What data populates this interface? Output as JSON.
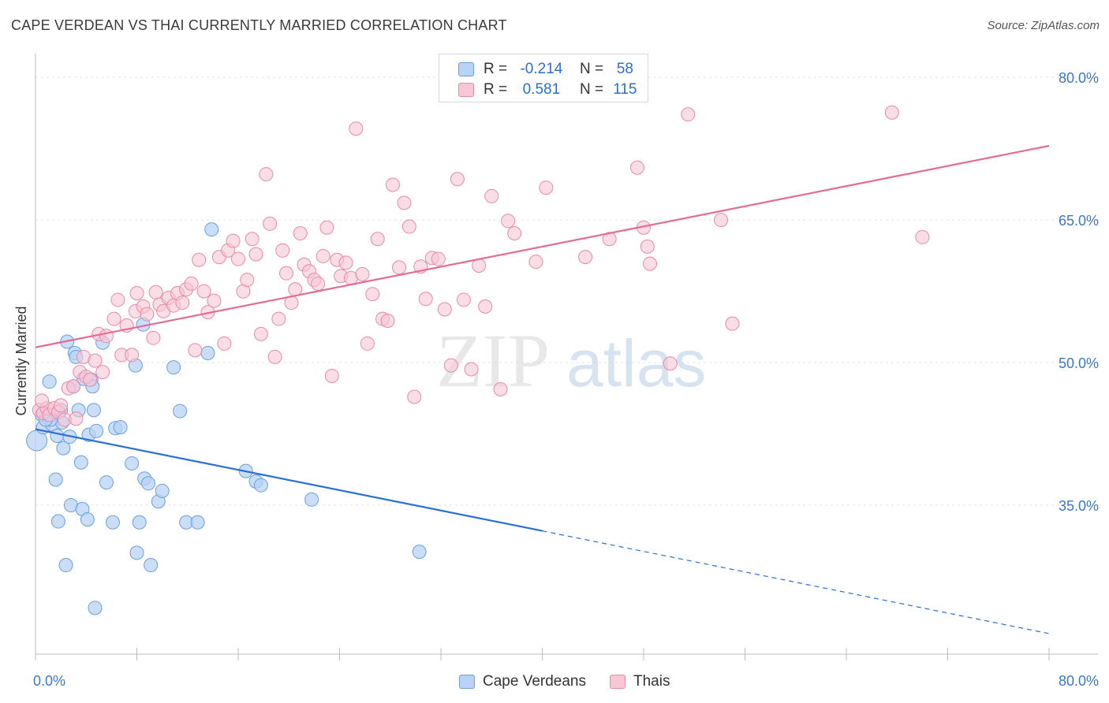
{
  "title": "CAPE VERDEAN VS THAI CURRENTLY MARRIED CORRELATION CHART",
  "source": "Source: ZipAtlas.com",
  "colors": {
    "blue_fill": "#b8d3f5",
    "blue_stroke": "#6a9fe0",
    "blue_line": "#2b6fd4",
    "pink_fill": "#f8c6d5",
    "pink_stroke": "#e88aa8",
    "pink_line": "#e36b95",
    "tick_label": "#3d78c8",
    "grid": "#e2e2e2"
  },
  "legend": {
    "rows": [
      {
        "r_label": "R =",
        "r_value": "-0.214",
        "n_label": "N =",
        "n_value": "58"
      },
      {
        "r_label": "R =",
        "r_value": "0.581",
        "n_label": "N =",
        "n_value": "115"
      }
    ],
    "series_labels": [
      "Cape Verdeans",
      "Thais"
    ]
  },
  "chart_data": {
    "type": "scatter",
    "title": "CAPE VERDEAN VS THAI CURRENTLY MARRIED CORRELATION CHART",
    "xlabel": "",
    "ylabel": "Currently Married",
    "xlim": [
      0,
      80
    ],
    "ylim": [
      20,
      82
    ],
    "x_tick_labels": [
      "0.0%",
      "80.0%"
    ],
    "y_ticks": [
      35,
      50,
      65,
      80
    ],
    "y_tick_labels": [
      "35.0%",
      "50.0%",
      "65.0%",
      "80.0%"
    ],
    "grid": true,
    "watermark": {
      "zip": "ZIP",
      "atlas": "atlas"
    },
    "series": [
      {
        "name": "Cape Verdeans",
        "r": -0.214,
        "n": 58,
        "trend": {
          "x0": 0,
          "y0": 43.0,
          "x1": 40,
          "y1": 32.3,
          "dash_x1": 80,
          "dash_y1": 21.5
        },
        "points": [
          [
            0.1,
            41.8
          ],
          [
            0.5,
            44.5
          ],
          [
            0.6,
            43.2
          ],
          [
            1.0,
            44.6
          ],
          [
            1.1,
            48.0
          ],
          [
            1.3,
            43.5
          ],
          [
            1.6,
            37.7
          ],
          [
            1.7,
            42.3
          ],
          [
            1.8,
            33.3
          ],
          [
            2.1,
            43.7
          ],
          [
            2.2,
            41.0
          ],
          [
            2.4,
            28.7
          ],
          [
            2.5,
            52.2
          ],
          [
            2.7,
            42.2
          ],
          [
            2.8,
            35.0
          ],
          [
            3.0,
            47.5
          ],
          [
            3.1,
            51.0
          ],
          [
            3.2,
            50.6
          ],
          [
            3.6,
            39.5
          ],
          [
            3.7,
            34.6
          ],
          [
            3.8,
            48.3
          ],
          [
            4.1,
            33.5
          ],
          [
            4.2,
            42.4
          ],
          [
            4.4,
            48.2
          ],
          [
            4.5,
            47.5
          ],
          [
            4.6,
            45.0
          ],
          [
            4.7,
            24.2
          ],
          [
            4.8,
            42.8
          ],
          [
            5.3,
            52.1
          ],
          [
            5.6,
            37.4
          ],
          [
            6.1,
            33.2
          ],
          [
            6.3,
            43.1
          ],
          [
            6.7,
            43.2
          ],
          [
            7.6,
            39.4
          ],
          [
            7.9,
            49.7
          ],
          [
            8.0,
            30.0
          ],
          [
            8.2,
            33.2
          ],
          [
            8.5,
            54.0
          ],
          [
            8.6,
            37.8
          ],
          [
            8.9,
            37.3
          ],
          [
            9.1,
            28.7
          ],
          [
            9.7,
            35.4
          ],
          [
            10.0,
            36.5
          ],
          [
            10.9,
            49.5
          ],
          [
            11.4,
            44.9
          ],
          [
            11.9,
            33.2
          ],
          [
            12.8,
            33.2
          ],
          [
            13.6,
            51.0
          ],
          [
            13.9,
            64.0
          ],
          [
            16.6,
            38.6
          ],
          [
            17.4,
            37.5
          ],
          [
            17.8,
            37.1
          ],
          [
            21.8,
            35.6
          ],
          [
            30.3,
            30.1
          ],
          [
            1.2,
            44.0
          ],
          [
            2.0,
            45.0
          ],
          [
            0.8,
            44.0
          ],
          [
            3.4,
            45.0
          ]
        ]
      },
      {
        "name": "Thais",
        "r": 0.581,
        "n": 115,
        "trend": {
          "x0": 0,
          "y0": 51.6,
          "x1": 80,
          "y1": 72.8
        },
        "points": [
          [
            0.3,
            45.0
          ],
          [
            0.6,
            44.7
          ],
          [
            0.9,
            45.2
          ],
          [
            1.1,
            44.5
          ],
          [
            1.5,
            45.2
          ],
          [
            1.8,
            44.8
          ],
          [
            2.0,
            45.5
          ],
          [
            2.3,
            44.0
          ],
          [
            2.6,
            47.3
          ],
          [
            3.0,
            47.5
          ],
          [
            3.2,
            44.1
          ],
          [
            3.5,
            49.0
          ],
          [
            3.8,
            50.6
          ],
          [
            4.0,
            48.5
          ],
          [
            4.3,
            48.2
          ],
          [
            4.7,
            50.2
          ],
          [
            5.0,
            53.0
          ],
          [
            5.3,
            49.0
          ],
          [
            5.6,
            52.8
          ],
          [
            6.2,
            54.6
          ],
          [
            6.5,
            56.6
          ],
          [
            6.8,
            50.8
          ],
          [
            7.2,
            53.9
          ],
          [
            7.6,
            50.8
          ],
          [
            7.9,
            55.4
          ],
          [
            8.0,
            57.3
          ],
          [
            8.5,
            55.9
          ],
          [
            8.8,
            55.1
          ],
          [
            9.3,
            52.6
          ],
          [
            9.5,
            57.4
          ],
          [
            9.8,
            56.1
          ],
          [
            10.1,
            55.4
          ],
          [
            10.5,
            56.8
          ],
          [
            10.9,
            56.0
          ],
          [
            11.2,
            57.3
          ],
          [
            11.6,
            56.3
          ],
          [
            11.9,
            57.7
          ],
          [
            12.3,
            58.3
          ],
          [
            12.6,
            51.3
          ],
          [
            12.9,
            60.8
          ],
          [
            13.3,
            57.5
          ],
          [
            13.6,
            55.3
          ],
          [
            14.1,
            56.5
          ],
          [
            14.5,
            61.1
          ],
          [
            14.9,
            52.0
          ],
          [
            15.2,
            61.8
          ],
          [
            15.6,
            62.8
          ],
          [
            16.0,
            60.9
          ],
          [
            16.4,
            57.5
          ],
          [
            16.7,
            58.7
          ],
          [
            17.1,
            63.0
          ],
          [
            17.4,
            61.4
          ],
          [
            17.8,
            53.0
          ],
          [
            18.2,
            69.8
          ],
          [
            18.5,
            64.6
          ],
          [
            18.9,
            50.6
          ],
          [
            19.2,
            54.6
          ],
          [
            19.5,
            61.8
          ],
          [
            19.8,
            59.4
          ],
          [
            20.2,
            56.3
          ],
          [
            20.5,
            57.7
          ],
          [
            20.9,
            63.6
          ],
          [
            21.2,
            60.3
          ],
          [
            21.6,
            59.6
          ],
          [
            22.0,
            58.7
          ],
          [
            22.3,
            58.3
          ],
          [
            22.7,
            61.2
          ],
          [
            23.0,
            64.2
          ],
          [
            23.4,
            48.6
          ],
          [
            23.8,
            60.8
          ],
          [
            24.1,
            59.1
          ],
          [
            24.5,
            60.5
          ],
          [
            24.9,
            58.9
          ],
          [
            25.3,
            74.6
          ],
          [
            25.8,
            59.3
          ],
          [
            26.2,
            52.0
          ],
          [
            26.6,
            57.2
          ],
          [
            27.0,
            63.0
          ],
          [
            27.4,
            54.6
          ],
          [
            27.8,
            54.4
          ],
          [
            28.2,
            68.7
          ],
          [
            28.7,
            60.0
          ],
          [
            29.1,
            66.8
          ],
          [
            29.5,
            64.3
          ],
          [
            29.9,
            46.4
          ],
          [
            30.4,
            60.1
          ],
          [
            30.8,
            56.7
          ],
          [
            31.3,
            61.0
          ],
          [
            31.8,
            60.9
          ],
          [
            32.3,
            55.6
          ],
          [
            32.8,
            49.7
          ],
          [
            33.3,
            69.3
          ],
          [
            33.8,
            56.6
          ],
          [
            34.4,
            49.3
          ],
          [
            35.0,
            60.2
          ],
          [
            35.5,
            55.9
          ],
          [
            36.0,
            67.5
          ],
          [
            36.7,
            47.2
          ],
          [
            37.3,
            64.9
          ],
          [
            37.8,
            63.6
          ],
          [
            39.5,
            60.6
          ],
          [
            40.3,
            68.4
          ],
          [
            43.4,
            61.1
          ],
          [
            45.3,
            63.0
          ],
          [
            47.5,
            70.5
          ],
          [
            48.0,
            64.2
          ],
          [
            48.3,
            62.2
          ],
          [
            48.5,
            60.4
          ],
          [
            50.1,
            49.9
          ],
          [
            51.5,
            76.1
          ],
          [
            54.1,
            65.0
          ],
          [
            55.0,
            54.1
          ],
          [
            67.6,
            76.3
          ],
          [
            70.0,
            63.2
          ],
          [
            0.5,
            46.0
          ]
        ]
      }
    ]
  }
}
